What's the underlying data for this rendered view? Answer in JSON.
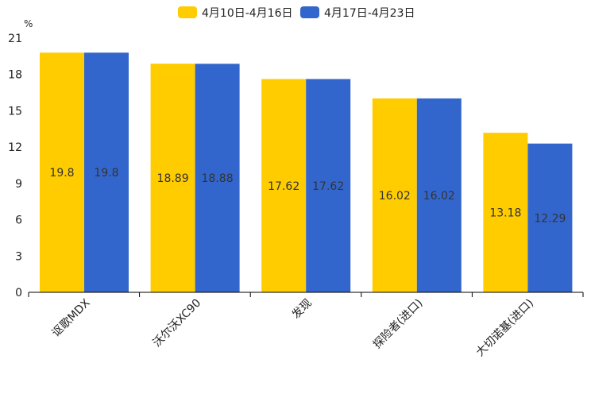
{
  "chart_data": {
    "type": "bar",
    "title": "",
    "xlabel": "",
    "ylabel": "%",
    "ylim": [
      0,
      21
    ],
    "yticks": [
      0,
      3,
      6,
      9,
      12,
      15,
      18,
      21
    ],
    "grid": false,
    "legend_position": "top-center",
    "categories": [
      "讴歌MDX",
      "沃尔沃XC90",
      "发现",
      "探险者(进口)",
      "大切诺基(进口)"
    ],
    "series": [
      {
        "name": "4月10日-4月16日",
        "color": "#FFCC00",
        "values": [
          19.8,
          18.89,
          17.62,
          16.02,
          13.18
        ]
      },
      {
        "name": "4月17日-4月23日",
        "color": "#3366CC",
        "values": [
          19.8,
          18.88,
          17.62,
          16.02,
          12.29
        ]
      }
    ]
  }
}
